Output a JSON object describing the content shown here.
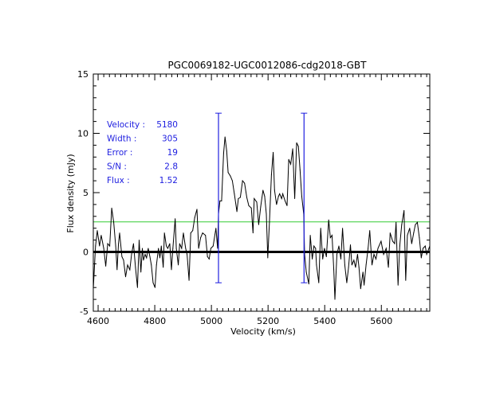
{
  "chart_data": {
    "type": "line",
    "title": "PGC0069182-UGC0012086-cdg2018-GBT",
    "xlabel": "Velocity (km/s)",
    "ylabel": "Flux density (mJy)",
    "xlim": [
      4583,
      5771
    ],
    "ylim": [
      -5,
      15
    ],
    "xticks": [
      4600,
      4800,
      5000,
      5200,
      5400,
      5600
    ],
    "xtick_labels": [
      "4600",
      "4800",
      "5000",
      "5200",
      "5400",
      "5600"
    ],
    "yticks": [
      -5,
      0,
      5,
      10,
      15
    ],
    "ytick_labels": [
      "-5",
      "0",
      "5",
      "10",
      "15"
    ],
    "grid": false,
    "colors": {
      "spectrum": "#000000",
      "markers": "#2020e0",
      "rms_line": "#33cc33",
      "baseline": "#000000"
    },
    "baseline_y": 0,
    "rms_line_y": 2.53,
    "markers": [
      {
        "x": 5025,
        "y_low": -2.6,
        "y_high": 11.7
      },
      {
        "x": 5327,
        "y_low": -2.6,
        "y_high": 11.7
      }
    ],
    "annotations": [
      {
        "label": "Velocity :",
        "value": "5180"
      },
      {
        "label": "Width :",
        "value": "305"
      },
      {
        "label": "Error :",
        "value": "19"
      },
      {
        "label": "S/N :",
        "value": "2.8"
      },
      {
        "label": "Flux :",
        "value": "1.52"
      }
    ],
    "series": [
      {
        "name": "spectrum",
        "x": [
          4583,
          4591,
          4597,
          4605,
          4611,
          4620,
          4627,
          4634,
          4641,
          4648,
          4655,
          4662,
          4667,
          4672,
          4676,
          4684,
          4690,
          4697,
          4704,
          4712,
          4718,
          4725,
          4732,
          4739,
          4745,
          4751,
          4756,
          4760,
          4766,
          4771,
          4777,
          4783,
          4788,
          4794,
          4801,
          4806,
          4813,
          4818,
          4823,
          4830,
          4834,
          4841,
          4846,
          4853,
          4859,
          4864,
          4872,
          4876,
          4883,
          4888,
          4895,
          4901,
          4909,
          4914,
          4921,
          4927,
          4934,
          4941,
          4949,
          4955,
          4962,
          4969,
          4979,
          4986,
          4992,
          4998,
          5006,
          5016,
          5022,
          5025,
          5030,
          5036,
          5043,
          5048,
          5054,
          5059,
          5067,
          5074,
          5081,
          5090,
          5095,
          5102,
          5110,
          5117,
          5125,
          5132,
          5141,
          5147,
          5151,
          5160,
          5167,
          5174,
          5182,
          5188,
          5194,
          5199,
          5205,
          5212,
          5218,
          5223,
          5230,
          5237,
          5241,
          5248,
          5252,
          5260,
          5267,
          5273,
          5280,
          5287,
          5294,
          5301,
          5307,
          5313,
          5319,
          5326,
          5329,
          5335,
          5344,
          5349,
          5356,
          5362,
          5368,
          5371,
          5379,
          5386,
          5393,
          5399,
          5406,
          5414,
          5420,
          5426,
          5432,
          5436,
          5443,
          5450,
          5457,
          5463,
          5471,
          5478,
          5484,
          5491,
          5496,
          5503,
          5509,
          5516,
          5521,
          5527,
          5535,
          5539,
          5546,
          5553,
          5559,
          5567,
          5574,
          5581,
          5588,
          5599,
          5608,
          5617,
          5625,
          5631,
          5640,
          5647,
          5652,
          5659,
          5665,
          5672,
          5680,
          5686,
          5692,
          5700,
          5707,
          5714,
          5720,
          5727,
          5734,
          5741,
          5747,
          5755,
          5760,
          5771
        ],
        "y": [
          -3.1,
          0.5,
          1.8,
          0.5,
          1.4,
          0.3,
          -1.2,
          0.7,
          0.5,
          3.7,
          2.5,
          0.5,
          -1.5,
          0.7,
          1.6,
          -0.4,
          -0.7,
          -2.1,
          -1.1,
          -1.5,
          -0.2,
          0.7,
          -1.3,
          -3.0,
          1.0,
          -1.7,
          0.3,
          -0.7,
          -0.2,
          -0.5,
          0.3,
          -0.4,
          -1.1,
          -2.6,
          -3.0,
          -1.1,
          0.3,
          -0.5,
          0.5,
          -1.3,
          1.6,
          0.5,
          0.3,
          0.7,
          -1.5,
          0.3,
          2.8,
          0.3,
          -1.1,
          0.7,
          0.3,
          1.6,
          0.3,
          -0.2,
          -2.4,
          1.6,
          1.8,
          2.9,
          3.6,
          0.3,
          1.2,
          1.6,
          1.4,
          -0.4,
          -0.6,
          0.3,
          0.5,
          2.0,
          0.3,
          3.2,
          4.3,
          4.3,
          8.3,
          9.7,
          8.5,
          6.7,
          6.4,
          6.0,
          4.9,
          3.4,
          4.5,
          4.6,
          6.0,
          5.8,
          4.6,
          3.9,
          3.7,
          1.6,
          4.5,
          4.2,
          2.3,
          3.8,
          5.2,
          4.7,
          3.2,
          -0.5,
          2.5,
          6.5,
          8.4,
          5.2,
          4.0,
          4.7,
          4.9,
          4.5,
          4.9,
          4.3,
          3.9,
          7.8,
          7.4,
          8.7,
          4.5,
          9.2,
          8.9,
          6.9,
          4.7,
          3.2,
          -0.2,
          -1.7,
          -2.7,
          1.4,
          -0.6,
          0.5,
          0.3,
          -1.1,
          -2.6,
          2.0,
          -0.6,
          0.3,
          -0.4,
          2.7,
          1.2,
          1.4,
          -1.5,
          -4.0,
          -0.2,
          0.5,
          -0.6,
          2.0,
          -1.1,
          -2.6,
          -1.3,
          0.6,
          -1.1,
          -0.7,
          -1.3,
          -0.2,
          -1.3,
          -3.1,
          -1.7,
          -2.8,
          -1.1,
          0.3,
          1.8,
          -1.1,
          -0.2,
          -0.6,
          0.3,
          0.9,
          -0.2,
          0.3,
          -1.3,
          1.6,
          0.9,
          0.7,
          2.5,
          -2.8,
          0.5,
          2.3,
          3.5,
          -2.4,
          1.4,
          2.0,
          0.7,
          1.6,
          2.3,
          2.5,
          1.2,
          -0.5,
          0.3,
          0.5,
          -0.2,
          0.5
        ]
      }
    ]
  }
}
